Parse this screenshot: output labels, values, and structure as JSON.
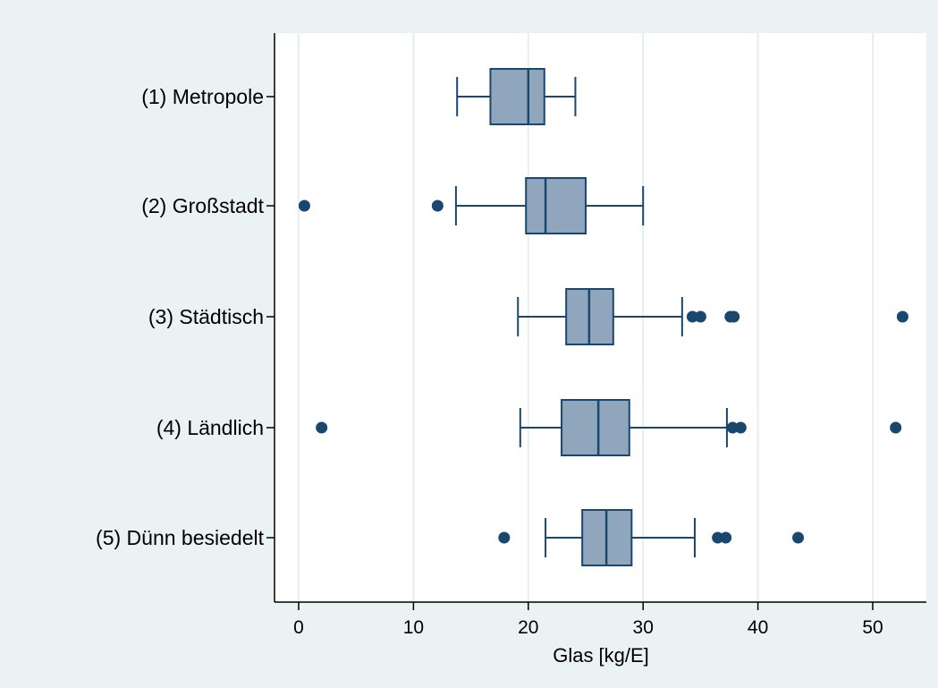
{
  "chart_data": {
    "type": "boxplot",
    "orientation": "horizontal",
    "title": "",
    "xlabel": "Glas [kg/E]",
    "ylabel": "",
    "xlim": [
      -2,
      54
    ],
    "xticks": [
      0,
      10,
      20,
      30,
      40,
      50
    ],
    "grid": true,
    "legend": "none",
    "colors": {
      "outer_background": "#eaf2f3",
      "plot_background": "#ffffff",
      "box_fill": "#90a6bd",
      "line": "#1a476f",
      "grid": "#e6eef0"
    },
    "categories": [
      "(1) Metropole",
      "(2) Großstadt",
      "(3) Städtisch",
      "(4) Ländlich",
      "(5) Dünn besiedelt"
    ],
    "boxes": [
      {
        "category": "(1) Metropole",
        "whisker_low": 13.8,
        "q1": 16.7,
        "median": 20.0,
        "q3": 21.4,
        "whisker_high": 24.1,
        "outliers": []
      },
      {
        "category": "(2) Großstadt",
        "whisker_low": 13.7,
        "q1": 19.8,
        "median": 21.5,
        "q3": 25.0,
        "whisker_high": 30.0,
        "outliers": [
          0.5,
          12.1
        ]
      },
      {
        "category": "(3) Städtisch",
        "whisker_low": 19.1,
        "q1": 23.3,
        "median": 25.3,
        "q3": 27.4,
        "whisker_high": 33.4,
        "outliers": [
          34.3,
          35.0,
          37.6,
          37.9,
          52.6
        ]
      },
      {
        "category": "(4) Ländlich",
        "whisker_low": 19.3,
        "q1": 22.9,
        "median": 26.1,
        "q3": 28.8,
        "whisker_high": 37.3,
        "outliers": [
          2.0,
          37.8,
          38.5,
          52.0
        ]
      },
      {
        "category": "(5) Dünn besiedelt",
        "whisker_low": 21.5,
        "q1": 24.7,
        "median": 26.8,
        "q3": 29.0,
        "whisker_high": 34.5,
        "outliers": [
          17.9,
          36.5,
          37.2,
          43.5
        ]
      }
    ]
  }
}
